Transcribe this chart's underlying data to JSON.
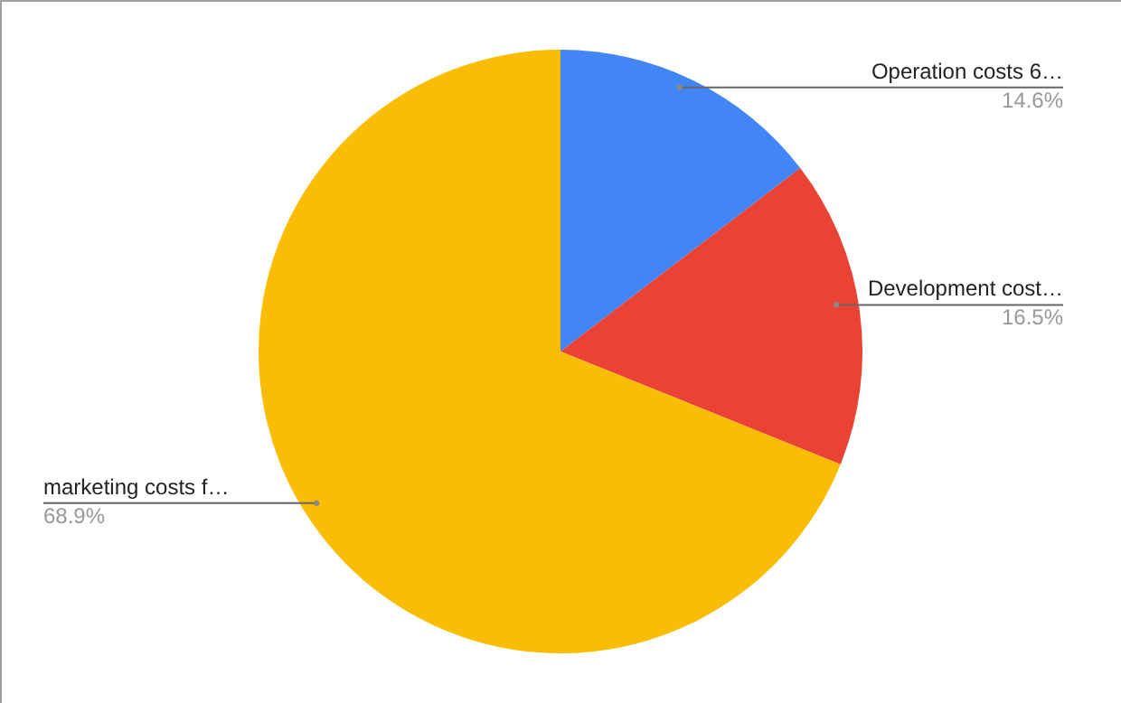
{
  "chart_data": {
    "type": "pie",
    "categories": [
      "Operation costs 6…",
      "Development cost…",
      "marketing costs f…"
    ],
    "values": [
      14.6,
      16.5,
      68.9
    ],
    "colors": [
      "#4285f4",
      "#ea4335",
      "#fbbc04"
    ],
    "value_labels": [
      "14.6%",
      "16.5%",
      "68.9%"
    ]
  }
}
